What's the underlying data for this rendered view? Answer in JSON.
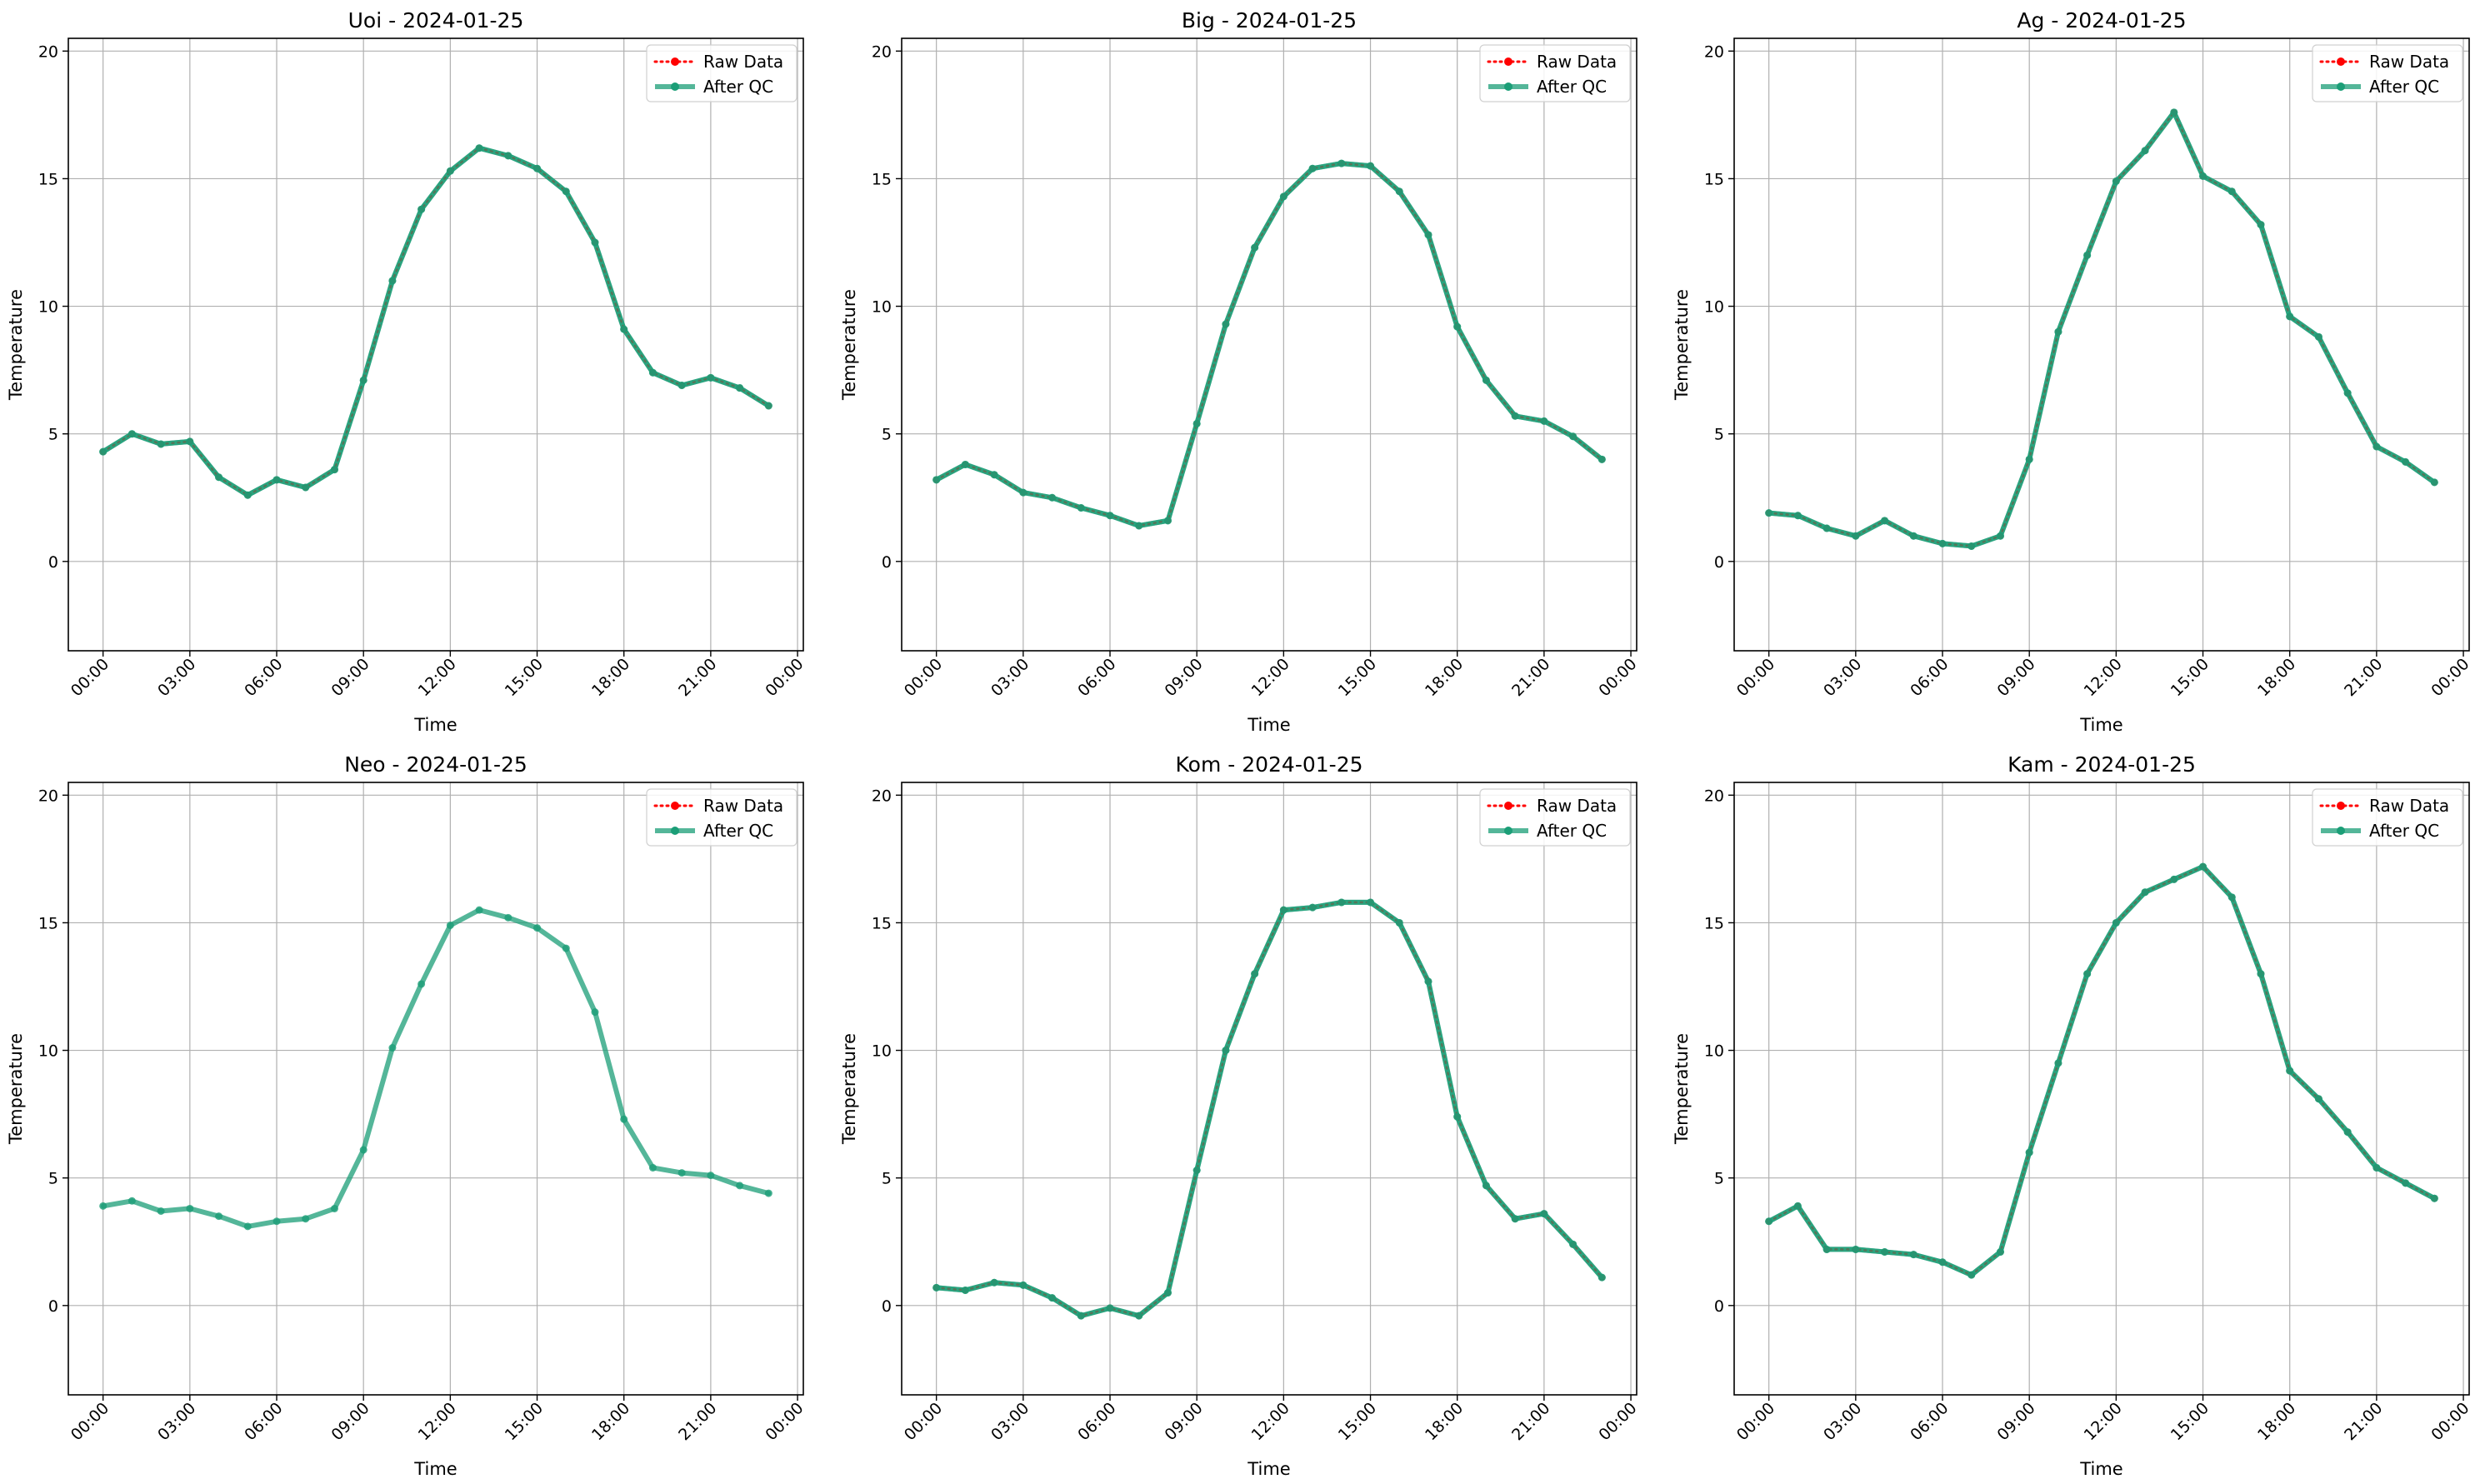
{
  "colors": {
    "raw": "#ff0000",
    "qc": "#1b9e77",
    "grid": "#b0b0b0"
  },
  "chart_data": [
    {
      "type": "line",
      "title": "Uoi - 2024-01-25",
      "xlabel": "Time",
      "ylabel": "Temperature",
      "x_ticks": [
        "00:00",
        "03:00",
        "06:00",
        "09:00",
        "12:00",
        "15:00",
        "18:00",
        "21:00",
        "00:00"
      ],
      "y_ticks": [
        "0",
        "5",
        "10",
        "15",
        "20"
      ],
      "ylim": [
        -3.5,
        20.5
      ],
      "xlim_hours": [
        -1.2,
        24.2
      ],
      "grid": true,
      "legend_position": "top-right",
      "legend": [
        "Raw Data",
        "After QC"
      ],
      "x_hours": [
        0,
        1,
        2,
        3,
        4,
        5,
        6,
        7,
        8,
        9,
        10,
        11,
        12,
        13,
        14,
        15,
        16,
        17,
        18,
        19,
        20,
        21,
        22,
        23
      ],
      "series": [
        {
          "name": "Raw Data",
          "values": [
            4.3,
            5.0,
            4.6,
            4.7,
            3.3,
            2.6,
            3.2,
            2.9,
            3.6,
            7.1,
            11.0,
            13.8,
            15.3,
            16.2,
            15.9,
            15.4,
            14.5,
            12.5,
            9.1,
            7.4,
            6.9,
            7.2,
            6.8,
            6.1
          ]
        },
        {
          "name": "After QC",
          "values": [
            4.3,
            5.0,
            4.6,
            4.7,
            3.3,
            2.6,
            3.2,
            2.9,
            3.6,
            7.1,
            11.0,
            13.8,
            15.3,
            16.2,
            15.9,
            15.4,
            14.5,
            12.5,
            9.1,
            7.4,
            6.9,
            7.2,
            6.8,
            6.1
          ]
        }
      ]
    },
    {
      "type": "line",
      "title": "Big - 2024-01-25",
      "xlabel": "Time",
      "ylabel": "Temperature",
      "x_ticks": [
        "00:00",
        "03:00",
        "06:00",
        "09:00",
        "12:00",
        "15:00",
        "18:00",
        "21:00",
        "00:00"
      ],
      "y_ticks": [
        "0",
        "5",
        "10",
        "15",
        "20"
      ],
      "ylim": [
        -3.5,
        20.5
      ],
      "xlim_hours": [
        -1.2,
        24.2
      ],
      "grid": true,
      "legend_position": "top-right",
      "legend": [
        "Raw Data",
        "After QC"
      ],
      "x_hours": [
        0,
        1,
        2,
        3,
        4,
        5,
        6,
        7,
        8,
        9,
        10,
        11,
        12,
        13,
        14,
        15,
        16,
        17,
        18,
        19,
        20,
        21,
        22,
        23
      ],
      "series": [
        {
          "name": "Raw Data",
          "values": [
            3.2,
            3.8,
            3.4,
            2.7,
            2.5,
            2.1,
            1.8,
            1.4,
            1.6,
            5.4,
            9.3,
            12.3,
            14.3,
            15.4,
            15.6,
            15.5,
            14.5,
            12.8,
            9.2,
            7.1,
            5.7,
            5.5,
            4.9,
            4.0
          ]
        },
        {
          "name": "After QC",
          "values": [
            3.2,
            3.8,
            3.4,
            2.7,
            2.5,
            2.1,
            1.8,
            1.4,
            1.6,
            5.4,
            9.3,
            12.3,
            14.3,
            15.4,
            15.6,
            15.5,
            14.5,
            12.8,
            9.2,
            7.1,
            5.7,
            5.5,
            4.9,
            4.0
          ]
        }
      ]
    },
    {
      "type": "line",
      "title": "Ag - 2024-01-25",
      "xlabel": "Time",
      "ylabel": "Temperature",
      "x_ticks": [
        "00:00",
        "03:00",
        "06:00",
        "09:00",
        "12:00",
        "15:00",
        "18:00",
        "21:00",
        "00:00"
      ],
      "y_ticks": [
        "0",
        "5",
        "10",
        "15",
        "20"
      ],
      "ylim": [
        -3.5,
        20.5
      ],
      "xlim_hours": [
        -1.2,
        24.2
      ],
      "grid": true,
      "legend_position": "top-right",
      "legend": [
        "Raw Data",
        "After QC"
      ],
      "x_hours": [
        0,
        1,
        2,
        3,
        4,
        5,
        6,
        7,
        8,
        9,
        10,
        11,
        12,
        13,
        14,
        15,
        16,
        17,
        18,
        19,
        20,
        21,
        22,
        23
      ],
      "series": [
        {
          "name": "Raw Data",
          "values": [
            1.9,
            1.8,
            1.3,
            1.0,
            1.6,
            1.0,
            0.7,
            0.6,
            1.0,
            4.0,
            9.0,
            12.0,
            14.9,
            16.1,
            17.6,
            15.1,
            14.5,
            13.2,
            9.6,
            8.8,
            6.6,
            4.5,
            3.9,
            3.1
          ]
        },
        {
          "name": "After QC",
          "values": [
            1.9,
            1.8,
            1.3,
            1.0,
            1.6,
            1.0,
            0.7,
            0.6,
            1.0,
            4.0,
            9.0,
            12.0,
            14.9,
            16.1,
            17.6,
            15.1,
            14.5,
            13.2,
            9.6,
            8.8,
            6.6,
            4.5,
            3.9,
            3.1
          ]
        }
      ]
    },
    {
      "type": "line",
      "title": "Neo - 2024-01-25",
      "xlabel": "Time",
      "ylabel": "Temperature",
      "x_ticks": [
        "00:00",
        "03:00",
        "06:00",
        "09:00",
        "12:00",
        "15:00",
        "18:00",
        "21:00",
        "00:00"
      ],
      "y_ticks": [
        "0",
        "5",
        "10",
        "15",
        "20"
      ],
      "ylim": [
        -3.5,
        20.5
      ],
      "xlim_hours": [
        -1.2,
        24.2
      ],
      "grid": true,
      "legend_position": "top-right",
      "legend": [
        "Raw Data",
        "After QC"
      ],
      "x_hours": [
        0,
        1,
        2,
        3,
        4,
        5,
        6,
        7,
        8,
        9,
        10,
        11,
        12,
        13,
        14,
        15,
        16,
        17,
        18,
        19,
        20,
        21,
        22,
        23
      ],
      "series": [
        {
          "name": "Raw Data",
          "values": []
        },
        {
          "name": "After QC",
          "values": [
            3.9,
            4.1,
            3.7,
            3.8,
            3.5,
            3.1,
            3.3,
            3.4,
            3.8,
            6.1,
            10.1,
            12.6,
            14.9,
            15.5,
            15.2,
            14.8,
            14.0,
            11.5,
            7.3,
            5.4,
            5.2,
            5.1,
            4.7,
            4.4
          ]
        }
      ]
    },
    {
      "type": "line",
      "title": "Kom - 2024-01-25",
      "xlabel": "Time",
      "ylabel": "Temperature",
      "x_ticks": [
        "00:00",
        "03:00",
        "06:00",
        "09:00",
        "12:00",
        "15:00",
        "18:00",
        "21:00",
        "00:00"
      ],
      "y_ticks": [
        "0",
        "5",
        "10",
        "15",
        "20"
      ],
      "ylim": [
        -3.5,
        20.5
      ],
      "xlim_hours": [
        -1.2,
        24.2
      ],
      "grid": true,
      "legend_position": "top-right",
      "legend": [
        "Raw Data",
        "After QC"
      ],
      "x_hours": [
        0,
        1,
        2,
        3,
        4,
        5,
        6,
        7,
        8,
        9,
        10,
        11,
        12,
        13,
        14,
        15,
        16,
        17,
        18,
        19,
        20,
        21,
        22,
        23
      ],
      "series": [
        {
          "name": "Raw Data",
          "values": [
            0.7,
            0.6,
            0.9,
            0.8,
            0.3,
            -0.4,
            -0.1,
            -0.4,
            0.5,
            5.3,
            10.0,
            13.0,
            15.5,
            15.6,
            15.8,
            15.8,
            15.0,
            12.7,
            7.4,
            4.7,
            3.4,
            3.6,
            2.4,
            1.1
          ]
        },
        {
          "name": "After QC",
          "values": [
            0.7,
            0.6,
            0.9,
            0.8,
            0.3,
            -0.4,
            -0.1,
            -0.4,
            0.5,
            5.3,
            10.0,
            13.0,
            15.5,
            15.6,
            15.8,
            15.8,
            15.0,
            12.7,
            7.4,
            4.7,
            3.4,
            3.6,
            2.4,
            1.1
          ]
        }
      ]
    },
    {
      "type": "line",
      "title": "Kam - 2024-01-25",
      "xlabel": "Time",
      "ylabel": "Temperature",
      "x_ticks": [
        "00:00",
        "03:00",
        "06:00",
        "09:00",
        "12:00",
        "15:00",
        "18:00",
        "21:00",
        "00:00"
      ],
      "y_ticks": [
        "0",
        "5",
        "10",
        "15",
        "20"
      ],
      "ylim": [
        -3.5,
        20.5
      ],
      "xlim_hours": [
        -1.2,
        24.2
      ],
      "grid": true,
      "legend_position": "top-right",
      "legend": [
        "Raw Data",
        "After QC"
      ],
      "x_hours": [
        0,
        1,
        2,
        3,
        4,
        5,
        6,
        7,
        8,
        9,
        10,
        11,
        12,
        13,
        14,
        15,
        16,
        17,
        18,
        19,
        20,
        21,
        22,
        23
      ],
      "series": [
        {
          "name": "Raw Data",
          "values": [
            3.3,
            3.9,
            2.2,
            2.2,
            2.1,
            2.0,
            1.7,
            1.2,
            2.1,
            6.0,
            9.5,
            13.0,
            15.0,
            16.2,
            16.7,
            17.2,
            16.0,
            13.0,
            9.2,
            8.1,
            6.8,
            5.4,
            4.8,
            4.2
          ]
        },
        {
          "name": "After QC",
          "values": [
            3.3,
            3.9,
            2.2,
            2.2,
            2.1,
            2.0,
            1.7,
            1.2,
            2.1,
            6.0,
            9.5,
            13.0,
            15.0,
            16.2,
            16.7,
            17.2,
            16.0,
            13.0,
            9.2,
            8.1,
            6.8,
            5.4,
            4.8,
            4.2
          ]
        }
      ]
    }
  ]
}
